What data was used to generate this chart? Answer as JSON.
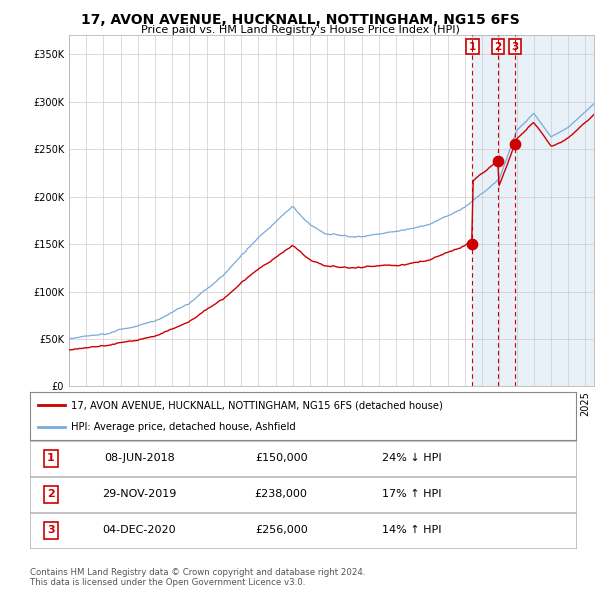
{
  "title": "17, AVON AVENUE, HUCKNALL, NOTTINGHAM, NG15 6FS",
  "subtitle": "Price paid vs. HM Land Registry's House Price Index (HPI)",
  "ylim": [
    0,
    370000
  ],
  "xlim_start": 1995.0,
  "xlim_end": 2025.5,
  "sale_t": [
    2018.44,
    2019.92,
    2020.92
  ],
  "sale_prices": [
    150000,
    238000,
    256000
  ],
  "sale_labels": [
    "1",
    "2",
    "3"
  ],
  "table_rows": [
    [
      "1",
      "08-JUN-2018",
      "£150,000",
      "24% ↓ HPI"
    ],
    [
      "2",
      "29-NOV-2019",
      "£238,000",
      "17% ↑ HPI"
    ],
    [
      "3",
      "04-DEC-2020",
      "£256,000",
      "14% ↑ HPI"
    ]
  ],
  "legend_line1": "17, AVON AVENUE, HUCKNALL, NOTTINGHAM, NG15 6FS (detached house)",
  "legend_line2": "HPI: Average price, detached house, Ashfield",
  "footer": "Contains HM Land Registry data © Crown copyright and database right 2024.\nThis data is licensed under the Open Government Licence v3.0.",
  "red_color": "#cc0000",
  "blue_color": "#7aaadd",
  "shade_color": "#e8f0f8",
  "background_color": "#ffffff",
  "grid_color": "#cccccc"
}
